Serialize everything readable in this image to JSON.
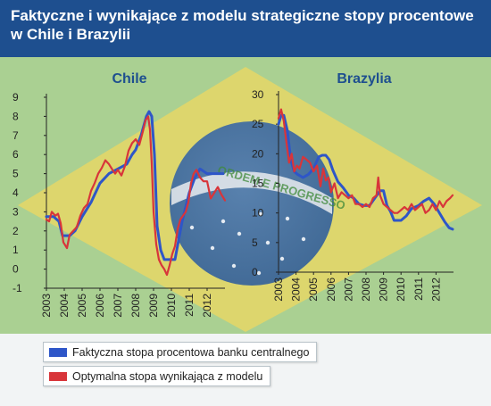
{
  "title": {
    "line1": "Faktyczne i wynikające z modelu strategiczne stopy procentowe",
    "line2": "w Chile i Brazylii"
  },
  "legend": {
    "actual": "Faktyczna stopa procentowa banku centralnego",
    "model": "Optymalna stopa wynikająca z modelu"
  },
  "colors": {
    "header": "#1e4f8f",
    "actual": "#2e56c8",
    "model": "#d8353a",
    "flag_green": "#6fb23f",
    "flag_yellow": "#e6d766",
    "flag_blue": "#2f5d9a"
  },
  "chart_data": [
    {
      "type": "line",
      "title": "Chile",
      "x_tick_labels": [
        "2003",
        "2004",
        "2005",
        "2006",
        "2007",
        "2008",
        "2009",
        "2010",
        "2011",
        "2012"
      ],
      "y_tick_labels": [
        "9",
        "8",
        "7",
        "6",
        "5",
        "4",
        "3",
        "2",
        "1",
        "0",
        "-1"
      ],
      "ylim": [
        -1,
        9
      ],
      "xlim": [
        2003,
        2013
      ],
      "grid": false,
      "series": [
        {
          "key": "actual",
          "x": [
            2003.0,
            2003.4,
            2003.7,
            2003.9,
            2004.3,
            2004.6,
            2005.0,
            2005.5,
            2006.0,
            2006.5,
            2007.0,
            2007.5,
            2007.8,
            2008.0,
            2008.3,
            2008.6,
            2008.75,
            2008.9,
            2009.05,
            2009.2,
            2009.4,
            2009.6,
            2009.8,
            2010.0,
            2010.2,
            2010.4,
            2010.6,
            2010.8,
            2011.0,
            2011.3,
            2011.6,
            2012.0,
            2012.5,
            2012.9
          ],
          "y": [
            2.75,
            2.75,
            2.5,
            1.75,
            1.75,
            2.0,
            2.75,
            3.5,
            4.5,
            5.0,
            5.25,
            5.5,
            6.0,
            6.25,
            7.0,
            8.0,
            8.25,
            8.0,
            6.0,
            2.25,
            1.0,
            0.5,
            0.5,
            0.5,
            0.5,
            1.5,
            2.5,
            3.25,
            4.0,
            4.75,
            5.25,
            5.0,
            5.0,
            5.0
          ]
        },
        {
          "key": "model",
          "x": [
            2003.0,
            2003.15,
            2003.3,
            2003.5,
            2003.65,
            2003.8,
            2003.95,
            2004.15,
            2004.3,
            2004.5,
            2004.7,
            2004.9,
            2005.1,
            2005.3,
            2005.5,
            2005.7,
            2005.9,
            2006.1,
            2006.3,
            2006.5,
            2006.7,
            2006.85,
            2007.0,
            2007.2,
            2007.4,
            2007.6,
            2007.8,
            2008.0,
            2008.2,
            2008.4,
            2008.55,
            2008.7,
            2008.8,
            2008.9,
            2009.0,
            2009.15,
            2009.3,
            2009.45,
            2009.6,
            2009.75,
            2009.9,
            2010.05,
            2010.2,
            2010.35,
            2010.5,
            2010.65,
            2010.8,
            2010.95,
            2011.1,
            2011.25,
            2011.4,
            2011.6,
            2011.8,
            2012.0,
            2012.2,
            2012.4,
            2012.6,
            2012.8,
            2013.0
          ],
          "y": [
            2.6,
            2.5,
            3.0,
            2.8,
            2.9,
            2.4,
            1.4,
            1.1,
            1.8,
            2.0,
            2.2,
            2.8,
            3.2,
            3.4,
            4.1,
            4.5,
            5.0,
            5.3,
            5.7,
            5.5,
            5.2,
            5.0,
            5.2,
            4.9,
            5.4,
            6.2,
            6.6,
            6.8,
            6.5,
            7.2,
            7.8,
            8.0,
            7.3,
            5.5,
            3.0,
            1.3,
            0.5,
            0.2,
            0.0,
            -0.3,
            0.2,
            0.8,
            1.2,
            2.1,
            2.6,
            2.8,
            3.0,
            3.5,
            4.5,
            5.0,
            5.2,
            4.8,
            4.6,
            4.6,
            3.7,
            4.0,
            4.3,
            3.9,
            3.6
          ]
        }
      ]
    },
    {
      "type": "line",
      "title": "Brazylia",
      "x_tick_labels": [
        "2003",
        "2004",
        "2005",
        "2006",
        "2007",
        "2008",
        "2009",
        "2010",
        "2011",
        "2012"
      ],
      "y_tick_labels": [
        "30",
        "25",
        "20",
        "15",
        "10",
        "5",
        "0"
      ],
      "ylim": [
        0,
        30
      ],
      "xlim": [
        2003,
        2013
      ],
      "grid": false,
      "series": [
        {
          "key": "actual",
          "x": [
            2003.0,
            2003.15,
            2003.3,
            2003.5,
            2003.7,
            2003.9,
            2004.1,
            2004.4,
            2004.7,
            2005.0,
            2005.3,
            2005.5,
            2005.7,
            2005.9,
            2006.1,
            2006.4,
            2006.7,
            2007.0,
            2007.3,
            2007.6,
            2007.9,
            2008.2,
            2008.5,
            2008.8,
            2009.0,
            2009.2,
            2009.4,
            2009.6,
            2010.0,
            2010.3,
            2010.6,
            2011.0,
            2011.3,
            2011.6,
            2011.9,
            2012.2,
            2012.5,
            2012.75,
            2012.95
          ],
          "y": [
            25.0,
            26.5,
            26.5,
            24.0,
            19.0,
            17.0,
            16.5,
            16.0,
            16.5,
            17.5,
            19.5,
            19.75,
            19.75,
            19.0,
            17.25,
            15.25,
            14.25,
            13.0,
            12.5,
            11.5,
            11.25,
            11.25,
            12.5,
            13.75,
            13.75,
            11.25,
            10.25,
            8.75,
            8.75,
            9.5,
            10.75,
            11.25,
            12.0,
            12.5,
            11.5,
            10.0,
            8.5,
            7.5,
            7.25
          ]
        },
        {
          "key": "model",
          "x": [
            2003.0,
            2003.15,
            2003.3,
            2003.45,
            2003.6,
            2003.75,
            2003.9,
            2004.05,
            2004.2,
            2004.4,
            2004.6,
            2004.8,
            2005.0,
            2005.2,
            2005.4,
            2005.55,
            2005.7,
            2005.85,
            2006.0,
            2006.2,
            2006.4,
            2006.6,
            2006.8,
            2007.0,
            2007.2,
            2007.4,
            2007.6,
            2007.8,
            2008.0,
            2008.2,
            2008.4,
            2008.6,
            2008.7,
            2008.8,
            2009.0,
            2009.2,
            2009.4,
            2009.6,
            2009.8,
            2010.0,
            2010.2,
            2010.4,
            2010.6,
            2010.8,
            2011.0,
            2011.2,
            2011.4,
            2011.6,
            2011.8,
            2012.0,
            2012.2,
            2012.4,
            2012.6,
            2012.8,
            2012.95
          ],
          "y": [
            26.0,
            27.5,
            25.5,
            22.0,
            18.5,
            20.0,
            17.0,
            18.0,
            17.5,
            19.5,
            19.0,
            18.5,
            17.0,
            18.0,
            14.5,
            17.5,
            15.5,
            16.0,
            13.5,
            15.0,
            12.5,
            13.5,
            13.0,
            12.5,
            13.0,
            11.5,
            11.5,
            11.0,
            11.5,
            11.0,
            12.5,
            13.0,
            16.0,
            13.0,
            11.5,
            11.0,
            10.5,
            10.0,
            10.0,
            10.5,
            11.0,
            10.5,
            11.5,
            10.5,
            11.0,
            11.5,
            10.0,
            10.5,
            11.5,
            10.5,
            12.0,
            11.0,
            12.0,
            12.5,
            13.0
          ]
        }
      ]
    }
  ]
}
